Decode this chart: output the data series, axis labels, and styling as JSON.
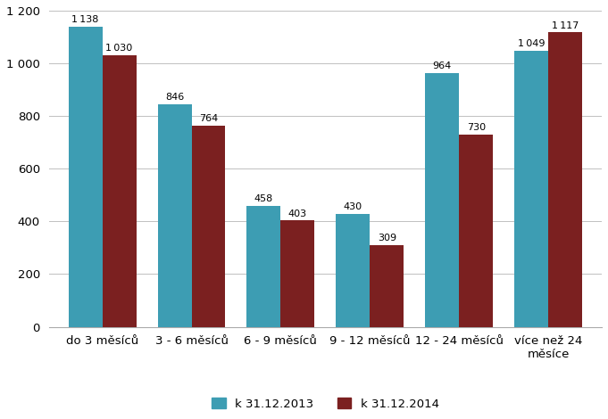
{
  "categories": [
    "do 3 měsíců",
    "3 - 6 měsíců",
    "6 - 9 měsíců",
    "9 - 12 měsíců",
    "12 - 24 měsíců",
    "více než 24\nměsíce"
  ],
  "series": [
    {
      "label": "k 31.12.2013",
      "values": [
        1138,
        846,
        458,
        430,
        964,
        1049
      ],
      "color": "#3D9DB3"
    },
    {
      "label": "k 31.12.2014",
      "values": [
        1030,
        764,
        403,
        309,
        730,
        1117
      ],
      "color": "#7B2020"
    }
  ],
  "ylim": [
    0,
    1200
  ],
  "yticks": [
    0,
    200,
    400,
    600,
    800,
    1000,
    1200
  ],
  "ytick_labels": [
    "0",
    "200",
    "400",
    "600",
    "800",
    "1 000",
    "1 200"
  ],
  "bar_width": 0.38,
  "label_fontsize": 8.0,
  "tick_fontsize": 9.5,
  "legend_fontsize": 9.5,
  "background_color": "#ffffff",
  "grid_color": "#c0c0c0"
}
